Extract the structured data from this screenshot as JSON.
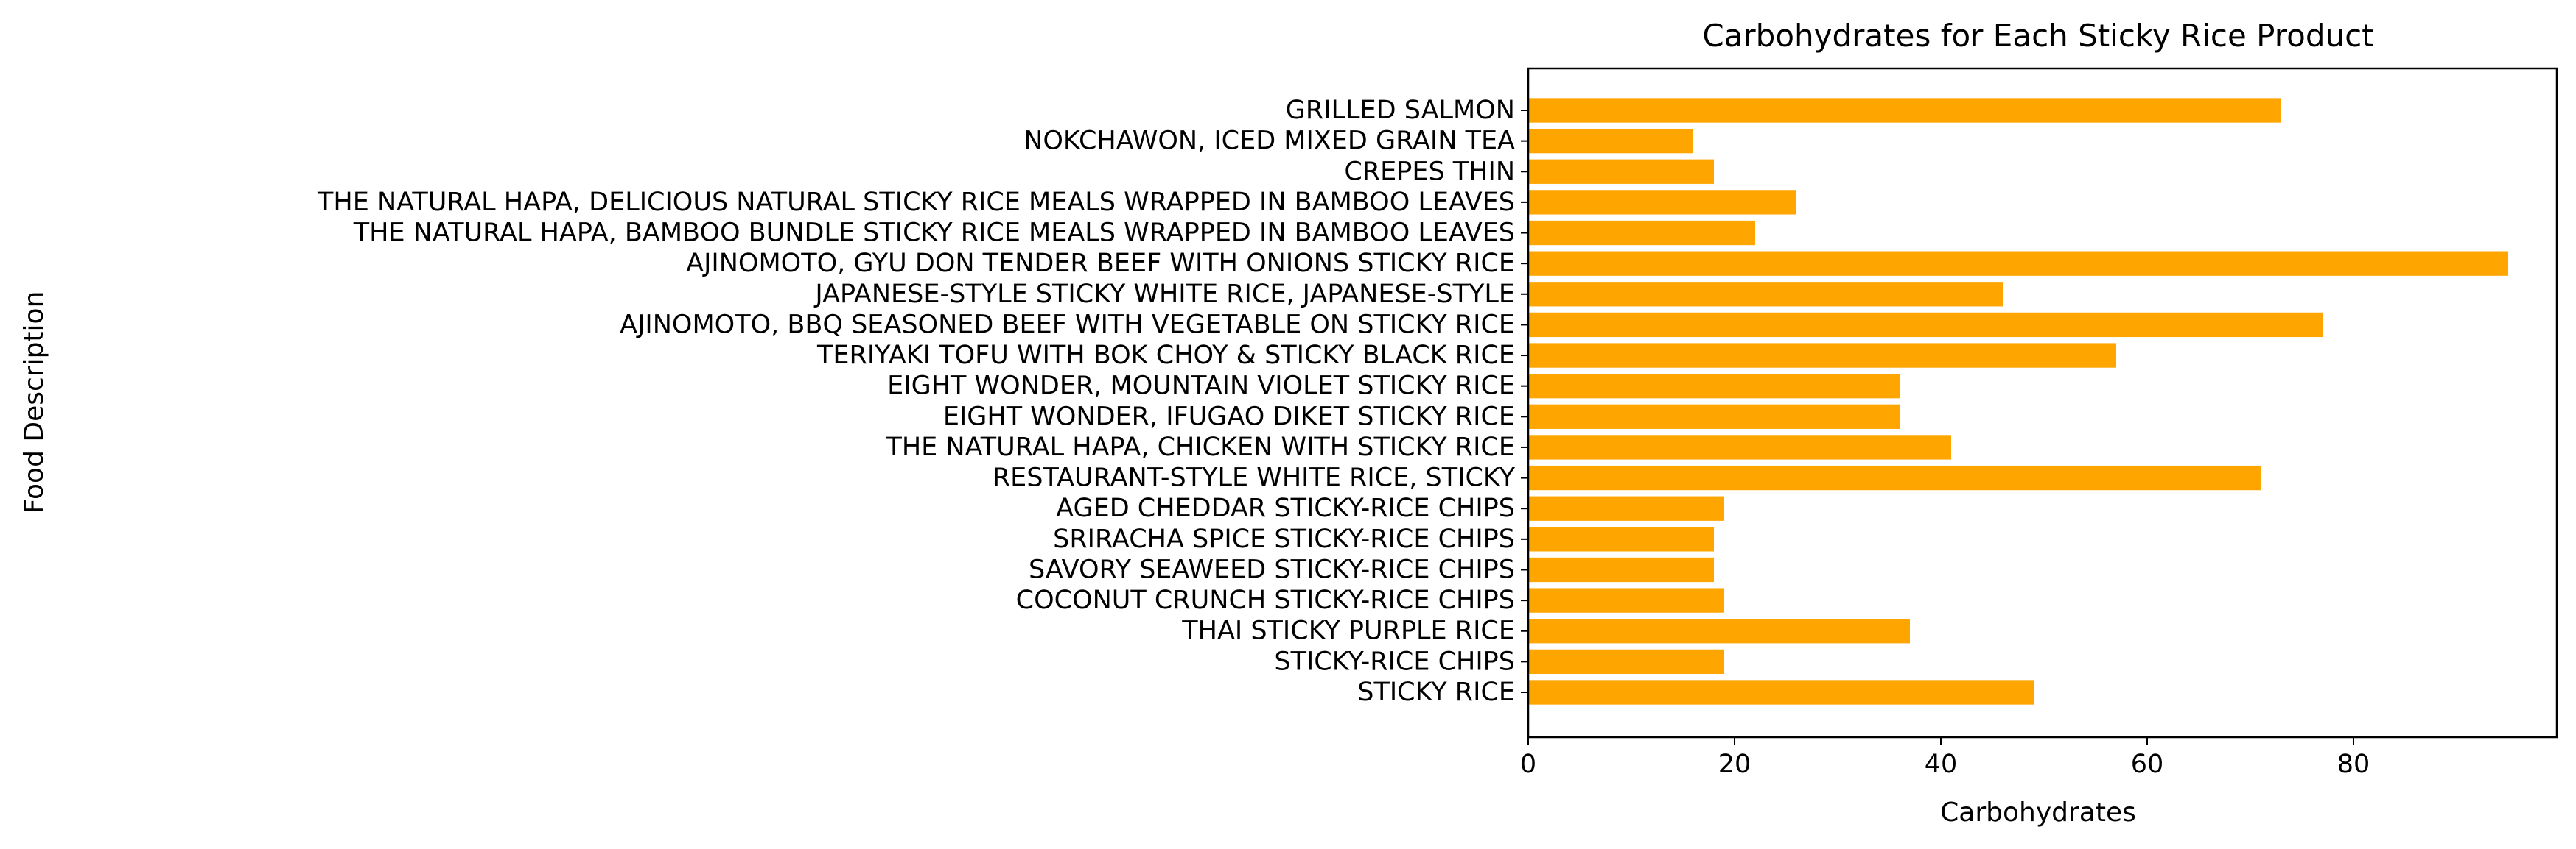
{
  "chart_data": {
    "type": "bar",
    "orientation": "horizontal",
    "title": "Carbohydrates for Each Sticky Rice Product",
    "xlabel": "Carbohydrates",
    "ylabel": "Food Description",
    "xlim": [
      0,
      100
    ],
    "xticks": [
      0,
      20,
      40,
      60,
      80
    ],
    "grid": false,
    "bar_color": "#FFA500",
    "categories": [
      "STICKY RICE",
      "STICKY-RICE CHIPS",
      "THAI STICKY PURPLE RICE",
      "COCONUT CRUNCH STICKY-RICE CHIPS",
      "SAVORY SEAWEED STICKY-RICE CHIPS",
      "SRIRACHA SPICE STICKY-RICE CHIPS",
      "AGED CHEDDAR STICKY-RICE CHIPS",
      "RESTAURANT-STYLE WHITE RICE, STICKY",
      "THE NATURAL HAPA, CHICKEN WITH STICKY RICE",
      "EIGHT WONDER, IFUGAO DIKET STICKY RICE",
      "EIGHT WONDER, MOUNTAIN VIOLET STICKY RICE",
      "TERIYAKI TOFU WITH BOK CHOY & STICKY BLACK RICE",
      "AJINOMOTO, BBQ SEASONED BEEF WITH VEGETABLE ON STICKY RICE",
      "JAPANESE-STYLE STICKY WHITE RICE, JAPANESE-STYLE",
      "AJINOMOTO, GYU DON TENDER BEEF WITH ONIONS STICKY RICE",
      "THE NATURAL HAPA, BAMBOO BUNDLE STICKY RICE MEALS WRAPPED IN BAMBOO LEAVES",
      "THE NATURAL HAPA, DELICIOUS NATURAL STICKY RICE MEALS WRAPPED IN BAMBOO LEAVES",
      "CREPES THIN",
      "NOKCHAWON, ICED MIXED GRAIN TEA",
      "GRILLED SALMON"
    ],
    "values": [
      49,
      19,
      37,
      19,
      18,
      18,
      19,
      71,
      41,
      36,
      36,
      57,
      77,
      46,
      95,
      22,
      26,
      18,
      16,
      73
    ]
  }
}
